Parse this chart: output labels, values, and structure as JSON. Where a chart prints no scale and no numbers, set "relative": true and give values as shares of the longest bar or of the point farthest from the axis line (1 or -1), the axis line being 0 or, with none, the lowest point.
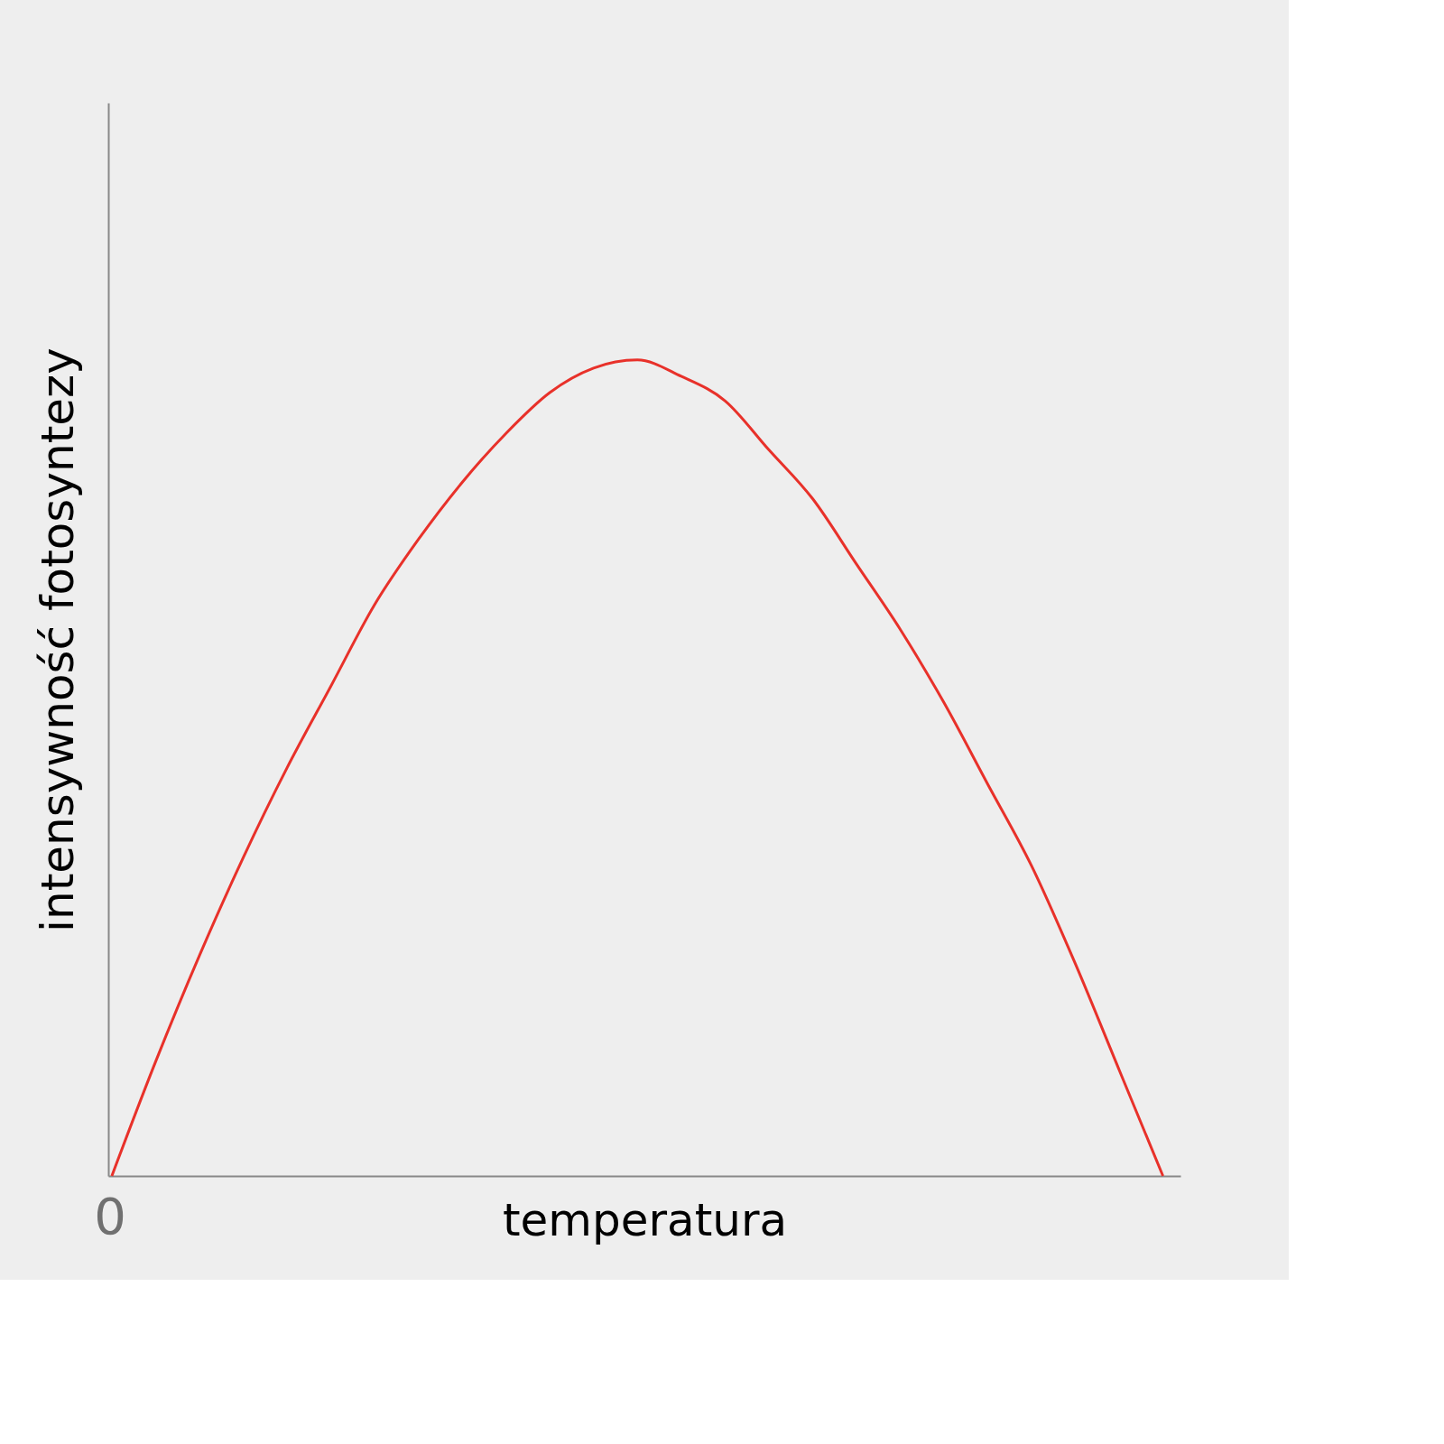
{
  "chart_data": {
    "type": "line",
    "relative": true,
    "xlabel": "temperatura",
    "ylabel": "intensywność fotosyntezy",
    "annotations": [
      "0"
    ],
    "categories": [
      null,
      null,
      null,
      null,
      null,
      null,
      null,
      null,
      null,
      null,
      null,
      null,
      null,
      null,
      null,
      null,
      null,
      null,
      null,
      null,
      null,
      null,
      null,
      null,
      null
    ],
    "series": [
      {
        "color": "#e8312a",
        "values": [
          0.0,
          0.14,
          0.27,
          0.39,
          0.5,
          0.6,
          0.7,
          0.78,
          0.85,
          0.91,
          0.96,
          0.99,
          1,
          0.98,
          0.95,
          0.89,
          0.83,
          0.75,
          0.67,
          0.58,
          0.48,
          0.38,
          0.26,
          0.13,
          0.0
        ]
      }
    ],
    "grid": false,
    "marker": "none",
    "line_style": "solid"
  }
}
